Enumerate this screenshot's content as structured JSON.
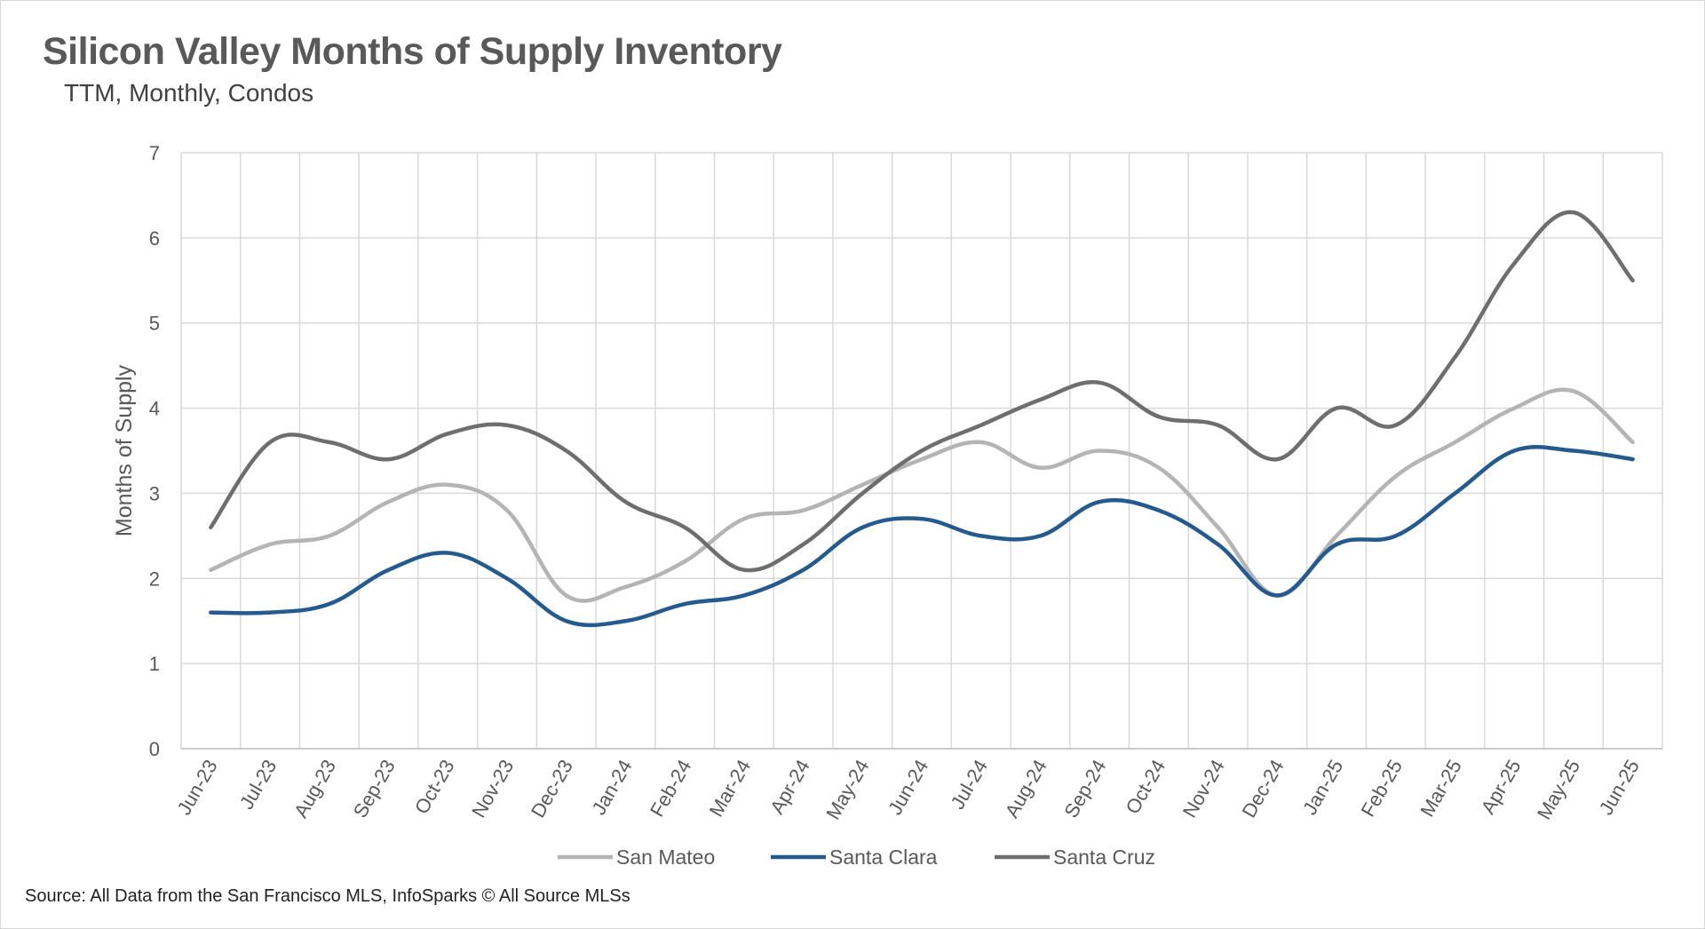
{
  "chart_data": {
    "type": "line",
    "title": "Silicon Valley Months of Supply Inventory",
    "subtitle": "TTM, Monthly, Condos",
    "xlabel": "",
    "ylabel": "Months of Supply",
    "ylim": [
      0,
      7
    ],
    "yticks": [
      "0",
      "1",
      "2",
      "3",
      "4",
      "5",
      "6",
      "7"
    ],
    "grid": true,
    "legend_position": "bottom",
    "categories": [
      "Jun-23",
      "Jul-23",
      "Aug-23",
      "Sep-23",
      "Oct-23",
      "Nov-23",
      "Dec-23",
      "Jan-24",
      "Feb-24",
      "Mar-24",
      "Apr-24",
      "May-24",
      "Jun-24",
      "Jul-24",
      "Aug-24",
      "Sep-24",
      "Oct-24",
      "Nov-24",
      "Dec-24",
      "Jan-25",
      "Feb-25",
      "Mar-25",
      "Apr-25",
      "May-25",
      "Jun-25"
    ],
    "series": [
      {
        "name": "San Mateo",
        "color": "#b4b4b4",
        "values": [
          2.1,
          2.4,
          2.5,
          2.9,
          3.1,
          2.8,
          1.8,
          1.9,
          2.2,
          2.7,
          2.8,
          3.1,
          3.4,
          3.6,
          3.3,
          3.5,
          3.3,
          2.6,
          1.8,
          2.5,
          3.2,
          3.6,
          4.0,
          4.2,
          3.6
        ]
      },
      {
        "name": "Santa Clara",
        "color": "#255a8e",
        "values": [
          1.6,
          1.6,
          1.7,
          2.1,
          2.3,
          2.0,
          1.5,
          1.5,
          1.7,
          1.8,
          2.1,
          2.6,
          2.7,
          2.5,
          2.5,
          2.9,
          2.8,
          2.4,
          1.8,
          2.4,
          2.5,
          3.0,
          3.5,
          3.5,
          3.4
        ]
      },
      {
        "name": "Santa Cruz",
        "color": "#6e6e6e",
        "values": [
          2.6,
          3.6,
          3.6,
          3.4,
          3.7,
          3.8,
          3.5,
          2.9,
          2.6,
          2.1,
          2.4,
          3.0,
          3.5,
          3.8,
          4.1,
          4.3,
          3.9,
          3.8,
          3.4,
          4.0,
          3.8,
          4.6,
          5.7,
          6.3,
          5.5
        ]
      }
    ]
  },
  "source": "Source: All Data from the San Francisco MLS, InfoSparks © All Source MLSs"
}
